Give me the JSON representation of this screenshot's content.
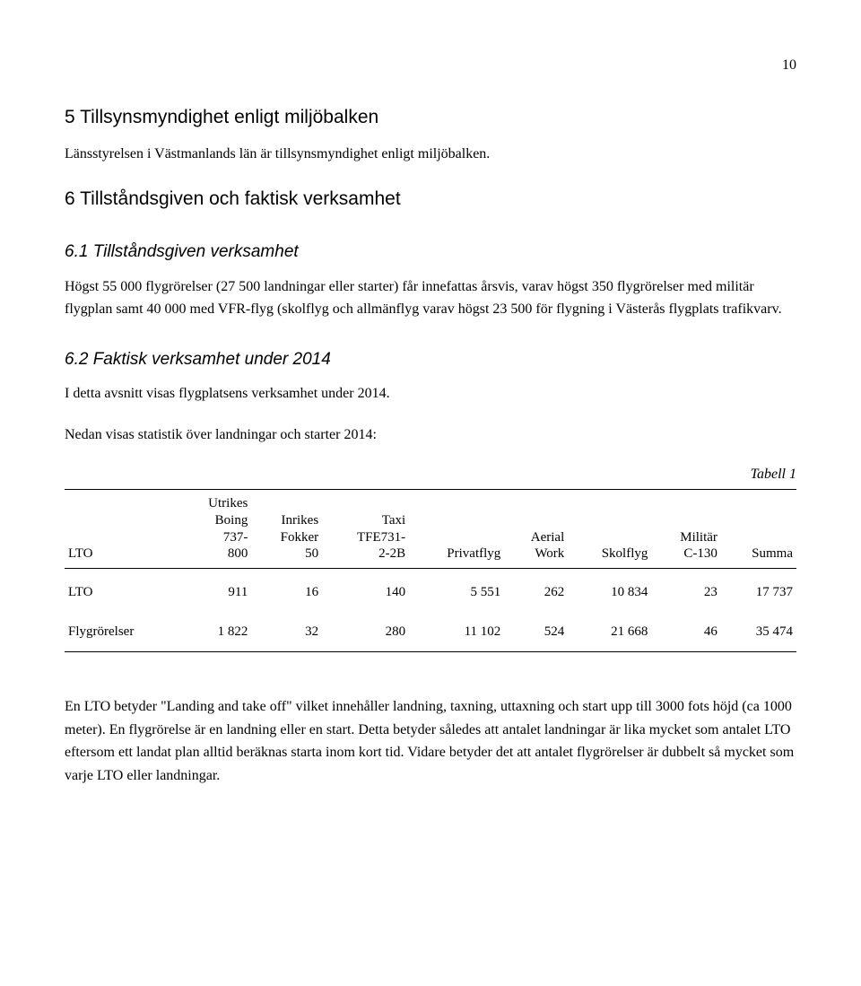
{
  "page_number": "10",
  "section5": {
    "heading": "5   Tillsynsmyndighet enligt miljöbalken",
    "body": "Länsstyrelsen i Västmanlands län är tillsynsmyndighet enligt miljöbalken."
  },
  "section6": {
    "heading": "6   Tillståndsgiven och faktisk verksamhet"
  },
  "section6_1": {
    "heading": "6.1   Tillståndsgiven verksamhet",
    "body": "Högst 55 000 flygrörelser (27 500 landningar eller starter) får innefattas årsvis, varav högst 350 flygrörelser med militär flygplan samt 40 000 med VFR-flyg (skolflyg och allmänflyg varav högst 23 500 för flygning i Västerås flygplats trafikvarv."
  },
  "section6_2": {
    "heading": "6.2   Faktisk verksamhet under 2014",
    "intro": "I detta avsnitt visas flygplatsens verksamhet under 2014.",
    "stats_line": "Nedan visas statistik över landningar och starter 2014:"
  },
  "table": {
    "caption": "Tabell 1",
    "columns": [
      {
        "label": "LTO"
      },
      {
        "label": "Utrikes\nBoing\n737-\n800"
      },
      {
        "label": "Inrikes\nFokker\n50"
      },
      {
        "label": "Taxi\nTFE731-\n2-2B"
      },
      {
        "label": "Privatflyg"
      },
      {
        "label": "Aerial\nWork"
      },
      {
        "label": "Skolflyg"
      },
      {
        "label": "Militär\nC-130"
      },
      {
        "label": "Summa"
      }
    ],
    "rows": [
      {
        "label": "LTO",
        "cells": [
          "911",
          "16",
          "140",
          "5 551",
          "262",
          "10 834",
          "23",
          "17 737"
        ]
      },
      {
        "label": "Flygrörelser",
        "cells": [
          "1 822",
          "32",
          "280",
          "11 102",
          "524",
          "21 668",
          "46",
          "35 474"
        ]
      }
    ]
  },
  "closing_paragraph": "En LTO betyder \"Landing and take off\" vilket innehåller landning, taxning, uttaxning och start upp till 3000 fots höjd (ca 1000 meter). En flygrörelse är en landning eller en start. Detta betyder således att antalet landningar är lika mycket som antalet LTO eftersom ett landat plan alltid beräknas starta inom kort tid. Vidare betyder det att antalet flygrörelser är dubbelt så mycket som varje LTO eller landningar."
}
